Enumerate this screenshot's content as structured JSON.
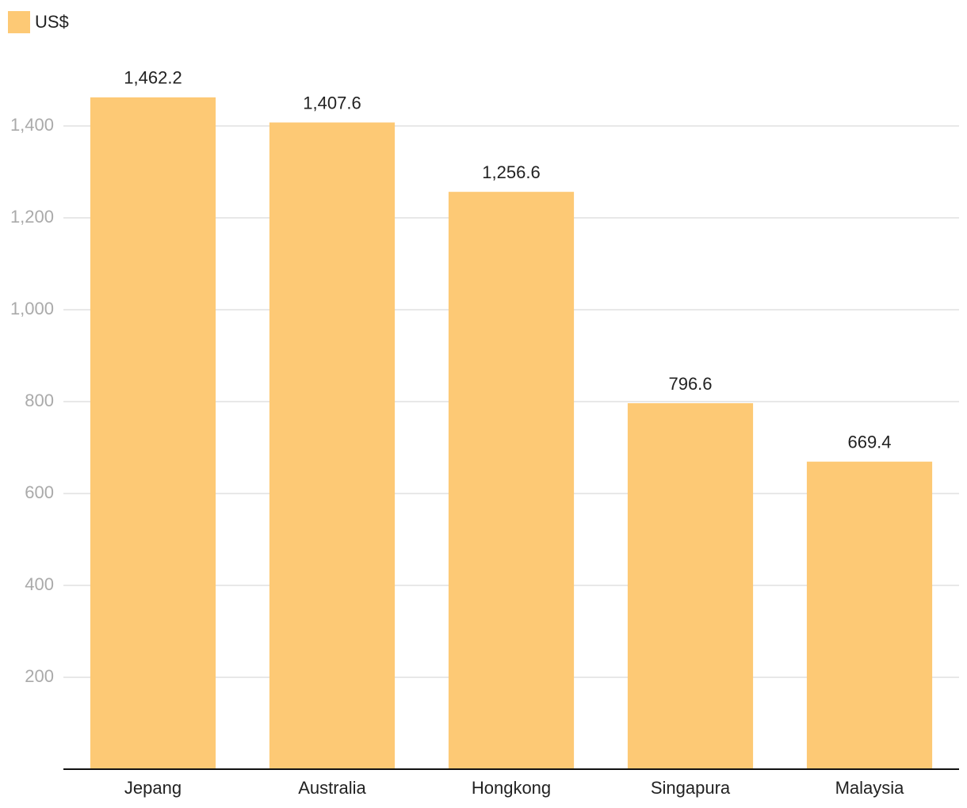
{
  "chart_data": {
    "type": "bar",
    "legend": "US$",
    "categories": [
      "Jepang",
      "Australia",
      "Hongkong",
      "Singapura",
      "Malaysia"
    ],
    "values": [
      1462.2,
      1407.6,
      1256.6,
      796.6,
      669.4
    ],
    "value_labels": [
      "1,462.2",
      "1,407.6",
      "1,256.6",
      "796.6",
      "669.4"
    ],
    "color": "#fdc975",
    "ylim": [
      0,
      1500
    ],
    "yticks": [
      200,
      400,
      600,
      800,
      {
        "value": 1000,
        "label": "1,000"
      },
      {
        "value": 1200,
        "label": "1,200"
      },
      {
        "value": 1400,
        "label": "1,400"
      }
    ],
    "grid": true
  }
}
